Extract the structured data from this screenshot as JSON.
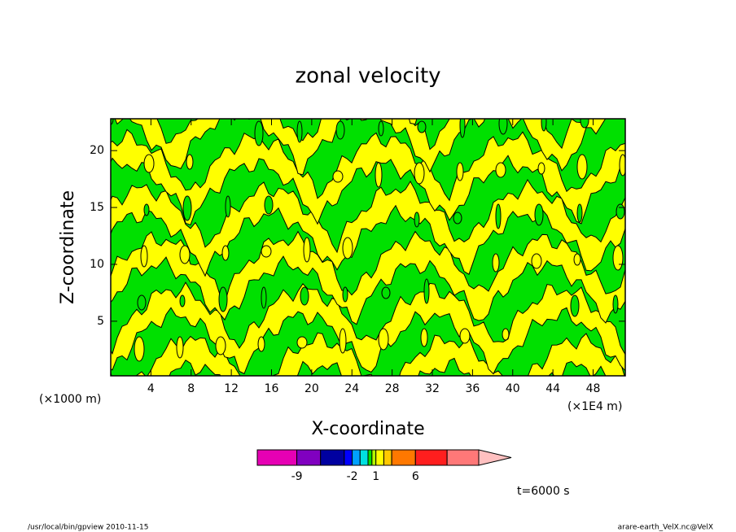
{
  "chart_data": {
    "type": "contour",
    "title": "zonal velocity",
    "x_label": "X-coordinate",
    "y_label": "Z-coordinate",
    "x_unit_label": "(×1E4 m)",
    "y_unit_label": "(×1000 m)",
    "xlim": [
      0,
      51.2
    ],
    "ylim": [
      0.2,
      22.8
    ],
    "xticks": [
      4,
      8,
      12,
      16,
      20,
      24,
      28,
      32,
      36,
      40,
      44,
      48
    ],
    "yticks": [
      5,
      10,
      15,
      20
    ],
    "field_colors": [
      "#00e000",
      "#ffff00"
    ],
    "colorbar": {
      "levels": [
        -14,
        -9,
        -6,
        -3,
        -2,
        -1,
        0,
        0.5,
        1,
        2,
        3,
        6,
        10,
        14
      ],
      "colors": [
        "#e600b4",
        "#8000c0",
        "#0000a0",
        "#0000ff",
        "#00a0ff",
        "#00e0e0",
        "#00e000",
        "#b4ff00",
        "#ffff00",
        "#ffc800",
        "#ff7800",
        "#ff1e1e",
        "#ff7878"
      ],
      "extend_color": "#ffc0c0",
      "ticks": [
        -9,
        -2,
        1,
        6
      ]
    },
    "annotation": "t=6000 s",
    "footer_left": "/usr/local/bin/gpview  2010-11-15",
    "footer_right": "arare-earth_VelX.nc@VelX"
  }
}
